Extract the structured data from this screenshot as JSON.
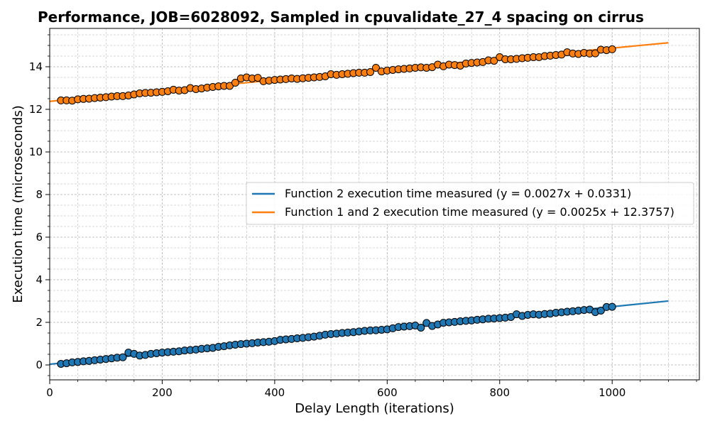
{
  "chart_data": {
    "type": "scatter",
    "title": "Performance, JOB=6028092, Sampled in cpuvalidate_27_4 spacing on cirrus",
    "xlabel": "Delay Length (iterations)",
    "ylabel": "Execution time (microseconds)",
    "xlim": [
      0,
      1155
    ],
    "ylim": [
      -0.7,
      15.8
    ],
    "x_ticks": [
      0,
      200,
      400,
      600,
      800,
      1000
    ],
    "y_ticks": [
      0,
      2,
      4,
      6,
      8,
      10,
      12,
      14
    ],
    "x_tick_labels": [
      "0",
      "200",
      "400",
      "600",
      "800",
      "1000"
    ],
    "y_tick_labels": [
      "0",
      "2",
      "4",
      "6",
      "8",
      "10",
      "12",
      "14"
    ],
    "grid": true,
    "minor_grid": true,
    "legend_position": "center-right",
    "series": [
      {
        "name": "Function 2 execution time measured (y = 0.0027x + 0.0331)",
        "color": "#1f77b4",
        "fit": {
          "slope": 0.0027,
          "intercept": 0.0331,
          "x_range": [
            0,
            1100
          ]
        },
        "x": [
          20,
          30,
          40,
          50,
          60,
          70,
          80,
          90,
          100,
          110,
          120,
          130,
          140,
          150,
          160,
          170,
          180,
          190,
          200,
          210,
          220,
          230,
          240,
          250,
          260,
          270,
          280,
          290,
          300,
          310,
          320,
          330,
          340,
          350,
          360,
          370,
          380,
          390,
          400,
          410,
          420,
          430,
          440,
          450,
          460,
          470,
          480,
          490,
          500,
          510,
          520,
          530,
          540,
          550,
          560,
          570,
          580,
          590,
          600,
          610,
          620,
          630,
          640,
          650,
          660,
          670,
          680,
          690,
          700,
          710,
          720,
          730,
          740,
          750,
          760,
          770,
          780,
          790,
          800,
          810,
          820,
          830,
          840,
          850,
          860,
          870,
          880,
          890,
          900,
          910,
          920,
          930,
          940,
          950,
          960,
          970,
          980,
          990,
          1000
        ],
        "y": [
          0.05,
          0.08,
          0.12,
          0.14,
          0.17,
          0.19,
          0.22,
          0.25,
          0.28,
          0.31,
          0.34,
          0.36,
          0.58,
          0.52,
          0.44,
          0.47,
          0.52,
          0.55,
          0.58,
          0.6,
          0.62,
          0.64,
          0.68,
          0.7,
          0.72,
          0.76,
          0.78,
          0.8,
          0.85,
          0.88,
          0.92,
          0.95,
          0.98,
          1.0,
          1.02,
          1.05,
          1.07,
          1.09,
          1.12,
          1.18,
          1.2,
          1.22,
          1.25,
          1.27,
          1.3,
          1.33,
          1.37,
          1.42,
          1.45,
          1.47,
          1.5,
          1.52,
          1.54,
          1.57,
          1.6,
          1.62,
          1.63,
          1.65,
          1.67,
          1.72,
          1.78,
          1.8,
          1.82,
          1.85,
          1.75,
          1.97,
          1.83,
          1.9,
          1.98,
          2.0,
          2.02,
          2.05,
          2.07,
          2.09,
          2.12,
          2.14,
          2.17,
          2.18,
          2.2,
          2.22,
          2.25,
          2.38,
          2.3,
          2.35,
          2.38,
          2.36,
          2.39,
          2.41,
          2.45,
          2.47,
          2.5,
          2.52,
          2.55,
          2.58,
          2.6,
          2.48,
          2.55,
          2.72,
          2.73
        ]
      },
      {
        "name": "Function 1 and 2 execution time measured (y = 0.0025x + 12.3757)",
        "color": "#ff7f0e",
        "fit": {
          "slope": 0.0025,
          "intercept": 12.3757,
          "x_range": [
            0,
            1100
          ]
        },
        "x": [
          20,
          30,
          40,
          50,
          60,
          70,
          80,
          90,
          100,
          110,
          120,
          130,
          140,
          150,
          160,
          170,
          180,
          190,
          200,
          210,
          220,
          230,
          240,
          250,
          260,
          270,
          280,
          290,
          300,
          310,
          320,
          330,
          340,
          350,
          360,
          370,
          380,
          390,
          400,
          410,
          420,
          430,
          440,
          450,
          460,
          470,
          480,
          490,
          500,
          510,
          520,
          530,
          540,
          550,
          560,
          570,
          580,
          590,
          600,
          610,
          620,
          630,
          640,
          650,
          660,
          670,
          680,
          690,
          700,
          710,
          720,
          730,
          740,
          750,
          760,
          770,
          780,
          790,
          800,
          810,
          820,
          830,
          840,
          850,
          860,
          870,
          880,
          890,
          900,
          910,
          920,
          930,
          940,
          950,
          960,
          970,
          980,
          990,
          1000
        ],
        "y": [
          12.42,
          12.42,
          12.41,
          12.47,
          12.49,
          12.5,
          12.53,
          12.55,
          12.57,
          12.6,
          12.62,
          12.62,
          12.65,
          12.7,
          12.75,
          12.77,
          12.78,
          12.8,
          12.82,
          12.85,
          12.92,
          12.88,
          12.9,
          13.0,
          12.95,
          12.98,
          13.02,
          13.05,
          13.08,
          13.1,
          13.1,
          13.25,
          13.45,
          13.5,
          13.45,
          13.48,
          13.32,
          13.35,
          13.38,
          13.4,
          13.42,
          13.45,
          13.43,
          13.46,
          13.48,
          13.5,
          13.52,
          13.55,
          13.65,
          13.62,
          13.65,
          13.67,
          13.7,
          13.72,
          13.72,
          13.75,
          13.95,
          13.78,
          13.82,
          13.85,
          13.88,
          13.9,
          13.92,
          13.95,
          13.97,
          13.95,
          13.98,
          14.1,
          14.02,
          14.1,
          14.08,
          14.05,
          14.15,
          14.18,
          14.2,
          14.22,
          14.3,
          14.28,
          14.45,
          14.35,
          14.35,
          14.37,
          14.4,
          14.42,
          14.45,
          14.45,
          14.5,
          14.52,
          14.55,
          14.57,
          14.68,
          14.62,
          14.6,
          14.65,
          14.62,
          14.63,
          14.8,
          14.78,
          14.82
        ]
      }
    ]
  }
}
